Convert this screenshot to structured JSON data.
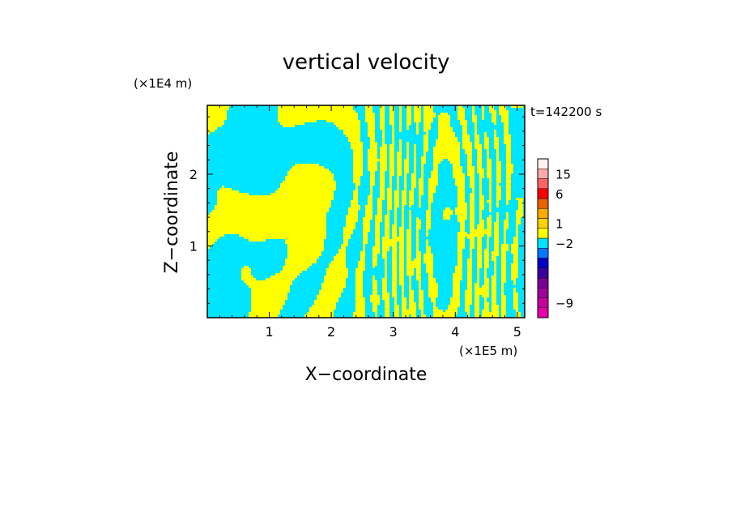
{
  "chart_data": {
    "type": "heatmap",
    "title": "vertical velocity",
    "xlabel": "X−coordinate",
    "ylabel": "Z−coordinate",
    "x_unit": "(×1E5 m)",
    "y_unit": "(×1E4 m)",
    "time_label": "t=142200 s",
    "xlim": [
      0,
      5.12
    ],
    "ylim": [
      0,
      2.96
    ],
    "x_ticks": [
      {
        "value": 1,
        "label": "1"
      },
      {
        "value": 2,
        "label": "2"
      },
      {
        "value": 3,
        "label": "3"
      },
      {
        "value": 4,
        "label": "4"
      },
      {
        "value": 5,
        "label": "5"
      }
    ],
    "y_ticks": [
      {
        "value": 1,
        "label": "1"
      },
      {
        "value": 2,
        "label": "2"
      }
    ],
    "field_colors": {
      "positive": "#ffff00",
      "negative": "#00e5ff"
    },
    "colorbar": {
      "levels_bottom_to_top": [
        {
          "color": "#e600aa"
        },
        {
          "color": "#c800a0",
          "label": "−9"
        },
        {
          "color": "#a0009a"
        },
        {
          "color": "#7a0096"
        },
        {
          "color": "#3c00a0"
        },
        {
          "color": "#0000c8"
        },
        {
          "color": "#0078ff"
        },
        {
          "color": "#00e5ff",
          "label": "−2"
        },
        {
          "color": "#ffff00"
        },
        {
          "color": "#ffd200",
          "label": "1"
        },
        {
          "color": "#ffaa00"
        },
        {
          "color": "#e66400"
        },
        {
          "color": "#ff0000",
          "label": "6"
        },
        {
          "color": "#ff6464"
        },
        {
          "color": "#ffaaaa",
          "label": "15"
        },
        {
          "color": "#fff0f0"
        }
      ]
    }
  }
}
